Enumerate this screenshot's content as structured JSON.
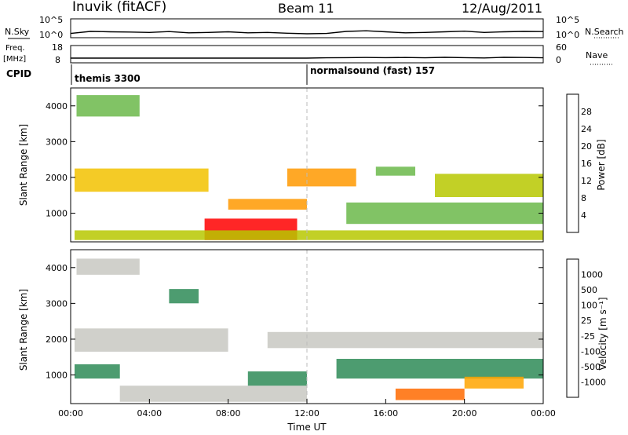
{
  "header": {
    "site": "Inuvik (fitACF)",
    "beam": "Beam 11",
    "date": "12/Aug/2011"
  },
  "strip_labels": {
    "nsky": "N.Sky",
    "freq_top": "Freq.",
    "freq_unit": "[MHz]",
    "cpid": "CPID",
    "nsearch": "N.Search",
    "nave": "Nave"
  },
  "cpid_segments": [
    {
      "label": "themis 3300",
      "start_hour": 0
    },
    {
      "label": "normalsound (fast) 157",
      "start_hour": 12
    }
  ],
  "chart_data": [
    {
      "type": "line",
      "name": "N.Sky / N.Search",
      "x_unit": "hour UT",
      "x": [
        0,
        1,
        2,
        3,
        4,
        5,
        6,
        7,
        8,
        9,
        10,
        11,
        12,
        13,
        14,
        15,
        16,
        17,
        18,
        19,
        20,
        21,
        22,
        23,
        24
      ],
      "values": [
        10,
        40,
        30,
        25,
        20,
        35,
        15,
        20,
        30,
        15,
        20,
        12,
        8,
        10,
        40,
        60,
        30,
        15,
        20,
        30,
        45,
        20,
        30,
        40,
        35
      ],
      "y_ticks_left": [
        "10^5",
        "10^0"
      ],
      "y_ticks_right": [
        "10^5",
        "10^0"
      ]
    },
    {
      "type": "line",
      "name": "Freq. / Nave",
      "x_unit": "hour UT",
      "x": [
        0,
        2,
        4,
        6,
        8,
        10,
        12,
        13,
        14,
        15,
        16,
        17,
        18,
        19,
        20,
        21,
        22,
        23,
        24
      ],
      "values": [
        10.5,
        10.5,
        10.5,
        10.5,
        10.5,
        10.5,
        10.5,
        10.7,
        10.8,
        10.9,
        10.8,
        10.9,
        10.7,
        11.0,
        10.8,
        10.6,
        11.0,
        10.9,
        10.7
      ],
      "y_ticks_left": [
        "18",
        "8"
      ],
      "y_ticks_right": [
        "60",
        "0"
      ]
    },
    {
      "type": "heatmap",
      "name": "Power",
      "ylabel": "Slant Range [km]",
      "y_ticks": [
        "1000",
        "2000",
        "3000",
        "4000"
      ],
      "ylim": [
        200,
        4500
      ],
      "colorbar": {
        "label": "Power [dB]",
        "ticks": [
          "28",
          "24",
          "20",
          "16",
          "12",
          "8",
          "4"
        ],
        "colors": [
          "#ff0000",
          "#ff5000",
          "#ff9900",
          "#f2c200",
          "#b7c800",
          "#6bb84a",
          "#2e8b57",
          "#2850b0",
          "#0000ff"
        ]
      },
      "regions": [
        {
          "t0": 0.2,
          "t1": 7.0,
          "r0": 1600,
          "r1": 2250,
          "value": 16
        },
        {
          "t0": 6.8,
          "t1": 11.5,
          "r0": 250,
          "r1": 850,
          "value": 28
        },
        {
          "t0": 11.0,
          "t1": 14.5,
          "r0": 1750,
          "r1": 2250,
          "value": 20
        },
        {
          "t0": 0.2,
          "t1": 24,
          "r0": 250,
          "r1": 520,
          "value": 12
        },
        {
          "t0": 14.0,
          "t1": 24,
          "r0": 700,
          "r1": 1300,
          "value": 8
        },
        {
          "t0": 18.5,
          "t1": 24,
          "r0": 1450,
          "r1": 2100,
          "value": 12
        },
        {
          "t0": 0.3,
          "t1": 3.5,
          "r0": 3700,
          "r1": 4300,
          "value": 8
        },
        {
          "t0": 8.0,
          "t1": 12.0,
          "r0": 1100,
          "r1": 1400,
          "value": 20
        },
        {
          "t0": 15.5,
          "t1": 17.5,
          "r0": 2050,
          "r1": 2300,
          "value": 8
        }
      ]
    },
    {
      "type": "heatmap",
      "name": "Velocity",
      "ylabel": "Slant Range [km]",
      "xlabel": "Time UT",
      "x_ticks": [
        "00:00",
        "04:00",
        "08:00",
        "12:00",
        "16:00",
        "20:00",
        "00:00"
      ],
      "y_ticks": [
        "1000",
        "2000",
        "3000",
        "4000"
      ],
      "ylim": [
        200,
        4500
      ],
      "colorbar": {
        "label": "Velocity [m s⁻¹]",
        "ticks": [
          "1000",
          "500",
          "100",
          "25",
          "-25",
          "-100",
          "-500",
          "-1000"
        ],
        "colors": [
          "#1f3bb0",
          "#1d7a8c",
          "#2e8b57",
          "#44bb33",
          "#c8c8c2",
          "#ffa500",
          "#ff6a00",
          "#ff0000"
        ]
      },
      "regions": [
        {
          "t0": 0.2,
          "t1": 8.0,
          "r0": 1650,
          "r1": 2300,
          "value": 0
        },
        {
          "t0": 10.0,
          "t1": 24,
          "r0": 1750,
          "r1": 2200,
          "value": 0
        },
        {
          "t0": 0.2,
          "t1": 2.5,
          "r0": 900,
          "r1": 1300,
          "value": 300
        },
        {
          "t0": 2.5,
          "t1": 12.0,
          "r0": 250,
          "r1": 700,
          "value": 0
        },
        {
          "t0": 9.0,
          "t1": 12.0,
          "r0": 700,
          "r1": 1100,
          "value": 300
        },
        {
          "t0": 13.5,
          "t1": 24,
          "r0": 900,
          "r1": 1450,
          "value": 300
        },
        {
          "t0": 16.5,
          "t1": 20.0,
          "r0": 300,
          "r1": 620,
          "value": -300
        },
        {
          "t0": 20.0,
          "t1": 23.0,
          "r0": 620,
          "r1": 950,
          "value": -100
        },
        {
          "t0": 0.3,
          "t1": 3.5,
          "r0": 3800,
          "r1": 4250,
          "value": 0
        },
        {
          "t0": 5.0,
          "t1": 6.5,
          "r0": 3000,
          "r1": 3400,
          "value": 300
        }
      ]
    }
  ]
}
